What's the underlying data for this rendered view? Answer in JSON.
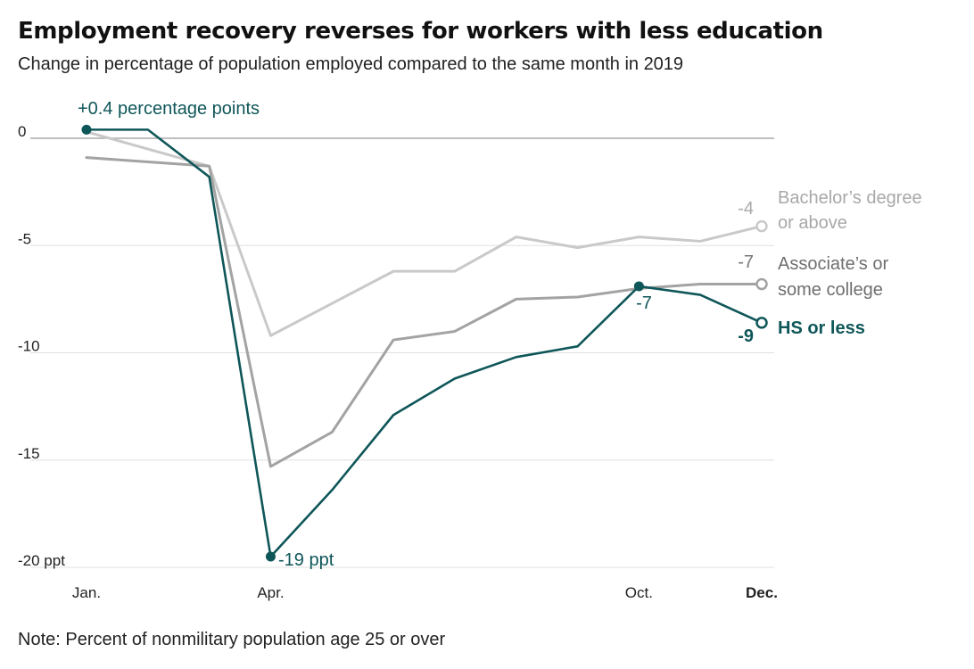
{
  "title": "Employment recovery reverses for workers with less education",
  "subtitle": "Change in percentage of population employed compared to the same month in 2019",
  "note": "Note: Percent of nonmilitary population age 25 or over",
  "colors": {
    "hs": "#0f5659",
    "assoc": "#a3a3a3",
    "bach": "#c9c9c9",
    "zero_line": "#aaaaaa",
    "grid": "#e0e0e0"
  },
  "chart_data": {
    "type": "line",
    "x": [
      1,
      2,
      3,
      4,
      5,
      6,
      7,
      8,
      9,
      10,
      11,
      12
    ],
    "xlim": [
      1,
      12
    ],
    "ylim": [
      -20,
      0
    ],
    "grid": true,
    "y_ticks": [
      {
        "value": 0,
        "label": "0"
      },
      {
        "value": -5,
        "label": "-5"
      },
      {
        "value": -10,
        "label": "-10"
      },
      {
        "value": -15,
        "label": "-15"
      },
      {
        "value": -20,
        "label": "-20 ppt"
      }
    ],
    "x_ticks": [
      {
        "value": 1,
        "label": "Jan.",
        "bold": false
      },
      {
        "value": 4,
        "label": "Apr.",
        "bold": false
      },
      {
        "value": 10,
        "label": "Oct.",
        "bold": false
      },
      {
        "value": 12,
        "label": "Dec.",
        "bold": true
      }
    ],
    "series": [
      {
        "key": "bach",
        "name": "Bachelor's degree or above",
        "label_lines": [
          "Bachelor’s degree",
          "or above"
        ],
        "label_bold": false,
        "values": [
          0.3,
          -0.5,
          -1.3,
          -9.2,
          -7.7,
          -6.2,
          -6.2,
          -4.6,
          -5.1,
          -4.6,
          -4.8,
          -4.1
        ],
        "end_label": "-4",
        "end_label_bold": false
      },
      {
        "key": "assoc",
        "name": "Associate's or some college",
        "label_lines": [
          "Associate’s or",
          "some college"
        ],
        "label_bold": false,
        "values": [
          -0.9,
          -1.1,
          -1.3,
          -15.3,
          -13.7,
          -9.4,
          -9.0,
          -7.5,
          -7.4,
          -7.0,
          -6.8,
          -6.8
        ],
        "end_label": "-7",
        "end_label_bold": false
      },
      {
        "key": "hs",
        "name": "HS or less",
        "label_lines": [
          "HS or less"
        ],
        "label_bold": true,
        "values": [
          0.4,
          0.4,
          -1.8,
          -19.5,
          -16.4,
          -12.9,
          -11.2,
          -10.2,
          -9.7,
          -6.9,
          -7.3,
          -8.6
        ],
        "end_label": "-9",
        "end_label_bold": true
      }
    ],
    "annotations": [
      {
        "text": "+0.4 percentage points",
        "series": "hs",
        "point_x": 1
      },
      {
        "text": "-19 ppt",
        "series": "hs",
        "point_x": 4
      },
      {
        "text": "-7",
        "series": "hs",
        "point_x": 10
      }
    ]
  }
}
